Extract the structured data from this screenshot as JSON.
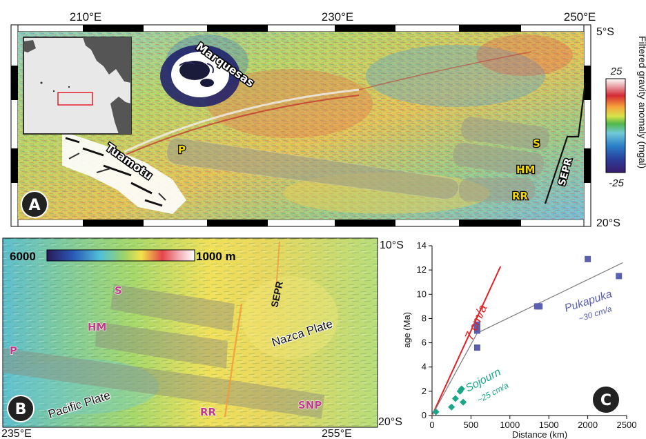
{
  "panelA": {
    "letter": "A",
    "lon_ticks": [
      "210°E",
      "230°E",
      "250°E"
    ],
    "lat_ticks": [
      "5°S",
      "20°S"
    ],
    "labels": {
      "marquesas": "Marquesas",
      "tuamotu": "Tuamotu",
      "p": "P",
      "s": "S",
      "hm": "HM",
      "rr": "RR",
      "sepr": "SEPR"
    },
    "colorbar": {
      "title": "Filtered gravity anomaly (mgal)",
      "max": "25",
      "min": "-25"
    }
  },
  "panelB": {
    "letter": "B",
    "lat_ticks": [
      "10°S",
      "20°S"
    ],
    "lon_ticks": [
      "235°E",
      "255°E"
    ],
    "depth_bar": {
      "left": "6000",
      "right": "1000 m"
    },
    "labels": {
      "s": "S",
      "hm": "HM",
      "p": "P",
      "rr": "RR",
      "snp": "SNP",
      "sepr": "SEPR",
      "nazca": "Nazca Plate",
      "pacific": "Pacific Plate"
    }
  },
  "panelC": {
    "letter": "C",
    "chart_data": {
      "type": "scatter",
      "xlabel": "Distance (km)",
      "ylabel": "age (Ma)",
      "xlim": [
        0,
        2500
      ],
      "ylim": [
        0,
        14
      ],
      "xticks": [
        0,
        500,
        1000,
        1500,
        2000,
        2500
      ],
      "yticks": [
        0,
        2,
        4,
        6,
        8,
        10,
        12,
        14
      ],
      "x_tick_labels": [
        "0",
        "500",
        "1000",
        "1500",
        "2000",
        "2500"
      ],
      "y_tick_labels": [
        "0",
        "2",
        "4",
        "6",
        "8",
        "10",
        "12",
        "14"
      ],
      "series": [
        {
          "name": "Pukapuka",
          "rate": "~30 cm/a",
          "color": "#5a5fb0",
          "x": [
            580,
            580,
            580,
            580,
            1350,
            1380,
            2000,
            2400
          ],
          "y": [
            5.6,
            7.0,
            7.3,
            7.5,
            9.0,
            9.0,
            12.9,
            11.5
          ]
        },
        {
          "name": "Sojourn",
          "rate": "~25 cm/a",
          "color": "#1aa688",
          "x": [
            50,
            250,
            300,
            360,
            380,
            400
          ],
          "y": [
            0.3,
            0.7,
            1.4,
            2.0,
            2.2,
            1.1
          ]
        }
      ],
      "lines": [
        {
          "label": "7 cm/a",
          "color": "#e31e24",
          "from": [
            0,
            0
          ],
          "to": [
            880,
            12.3
          ]
        },
        {
          "label": "",
          "color": "#808080",
          "from": [
            0,
            0
          ],
          "to": [
            580,
            6.8
          ]
        },
        {
          "label": "",
          "color": "#808080",
          "from": [
            580,
            6.8
          ],
          "to": [
            2450,
            12.6
          ]
        }
      ]
    }
  }
}
